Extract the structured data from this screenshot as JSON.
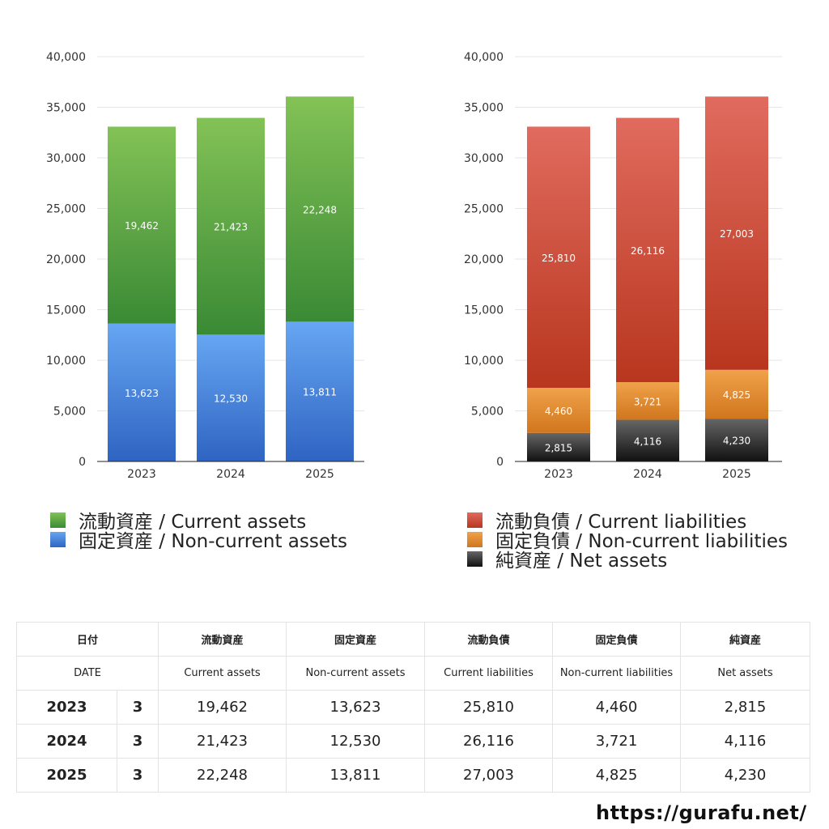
{
  "chart_data": [
    {
      "type": "bar",
      "stacked": true,
      "categories": [
        "2023",
        "2024",
        "2025"
      ],
      "ylim": [
        0,
        40000
      ],
      "yticks": [
        "0",
        "5,000",
        "10,000",
        "15,000",
        "20,000",
        "25,000",
        "30,000",
        "35,000",
        "40,000"
      ],
      "grid": true,
      "series": [
        {
          "name": "固定資産 / Non-current assets",
          "values": [
            13623,
            12530,
            13811
          ],
          "labels": [
            "13,623",
            "12,530",
            "13,811"
          ],
          "color_top": "#66a6f2",
          "color_bottom": "#2f64c2"
        },
        {
          "name": "流動資産 / Current assets",
          "values": [
            19462,
            21423,
            22248
          ],
          "labels": [
            "19,462",
            "21,423",
            "22,248"
          ],
          "color_top": "#83c256",
          "color_bottom": "#3a8a35"
        }
      ]
    },
    {
      "type": "bar",
      "stacked": true,
      "categories": [
        "2023",
        "2024",
        "2025"
      ],
      "ylim": [
        0,
        40000
      ],
      "yticks": [
        "0",
        "5,000",
        "10,000",
        "15,000",
        "20,000",
        "25,000",
        "30,000",
        "35,000",
        "40,000"
      ],
      "grid": true,
      "series": [
        {
          "name": "純資産 / Net assets",
          "values": [
            2815,
            4116,
            4230
          ],
          "labels": [
            "2,815",
            "4,116",
            "4,230"
          ],
          "color_top": "#666666",
          "color_bottom": "#111111"
        },
        {
          "name": "固定負債 / Non-current liabilities",
          "values": [
            4460,
            3721,
            4825
          ],
          "labels": [
            "4,460",
            "3,721",
            "4,825"
          ],
          "color_top": "#f0a24a",
          "color_bottom": "#d0761e"
        },
        {
          "name": "流動負債 / Current liabilities",
          "values": [
            25810,
            26116,
            27003
          ],
          "labels": [
            "25,810",
            "26,116",
            "27,003"
          ],
          "color_top": "#e06b5e",
          "color_bottom": "#b8361e"
        }
      ]
    }
  ],
  "legend_left": [
    {
      "label": "流動資産 / Current assets",
      "color": "#59a83f"
    },
    {
      "label": "固定資産 / Non-current assets",
      "color": "#4a8ce0"
    }
  ],
  "legend_right": [
    {
      "label": "流動負債 / Current liabilities",
      "color": "#cf4b3b"
    },
    {
      "label": "固定負債 / Non-current liabilities",
      "color": "#e88b34"
    },
    {
      "label": "純資産 / Net assets",
      "color": "#2a2a2a"
    }
  ],
  "table": {
    "header_jp": [
      "日付",
      "流動資産",
      "固定資産",
      "流動負債",
      "固定負債",
      "純資産"
    ],
    "header_en": [
      "DATE",
      "Current assets",
      "Non-current assets",
      "Current liabilities",
      "Non-current liabilities",
      "Net assets"
    ],
    "rows": [
      {
        "year": "2023",
        "month": "3",
        "values": [
          "19,462",
          "13,623",
          "25,810",
          "4,460",
          "2,815"
        ]
      },
      {
        "year": "2024",
        "month": "3",
        "values": [
          "21,423",
          "12,530",
          "26,116",
          "3,721",
          "4,116"
        ]
      },
      {
        "year": "2025",
        "month": "3",
        "values": [
          "22,248",
          "13,811",
          "27,003",
          "4,825",
          "4,230"
        ]
      }
    ]
  },
  "site": "https://gurafu.net/"
}
